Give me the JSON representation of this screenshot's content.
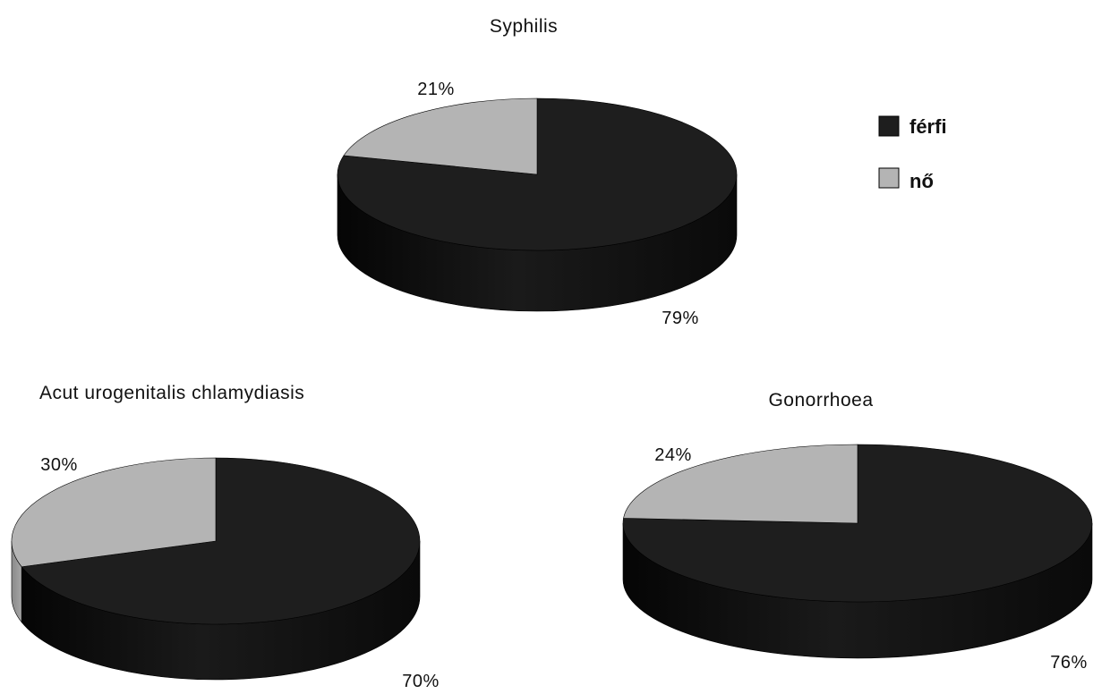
{
  "legend": {
    "items": [
      {
        "label": "férfi",
        "color": "#1e1e1e"
      },
      {
        "label": "nő",
        "color": "#b4b4b4"
      }
    ]
  },
  "chart_data": [
    {
      "type": "pie",
      "title": "Syphilis",
      "slices": [
        {
          "name": "férfi",
          "value": 79,
          "label": "79%",
          "color": "#1e1e1e"
        },
        {
          "name": "nő",
          "value": 21,
          "label": "21%",
          "color": "#b4b4b4"
        }
      ]
    },
    {
      "type": "pie",
      "title": "Acut urogenitalis chlamydiasis",
      "slices": [
        {
          "name": "férfi",
          "value": 70,
          "label": "70%",
          "color": "#1e1e1e"
        },
        {
          "name": "nő",
          "value": 30,
          "label": "30%",
          "color": "#b4b4b4"
        }
      ]
    },
    {
      "type": "pie",
      "title": "Gonorrhoea",
      "slices": [
        {
          "name": "férfi",
          "value": 76,
          "label": "76%",
          "color": "#1e1e1e"
        },
        {
          "name": "nő",
          "value": 24,
          "label": "24%",
          "color": "#b4b4b4"
        }
      ]
    }
  ]
}
